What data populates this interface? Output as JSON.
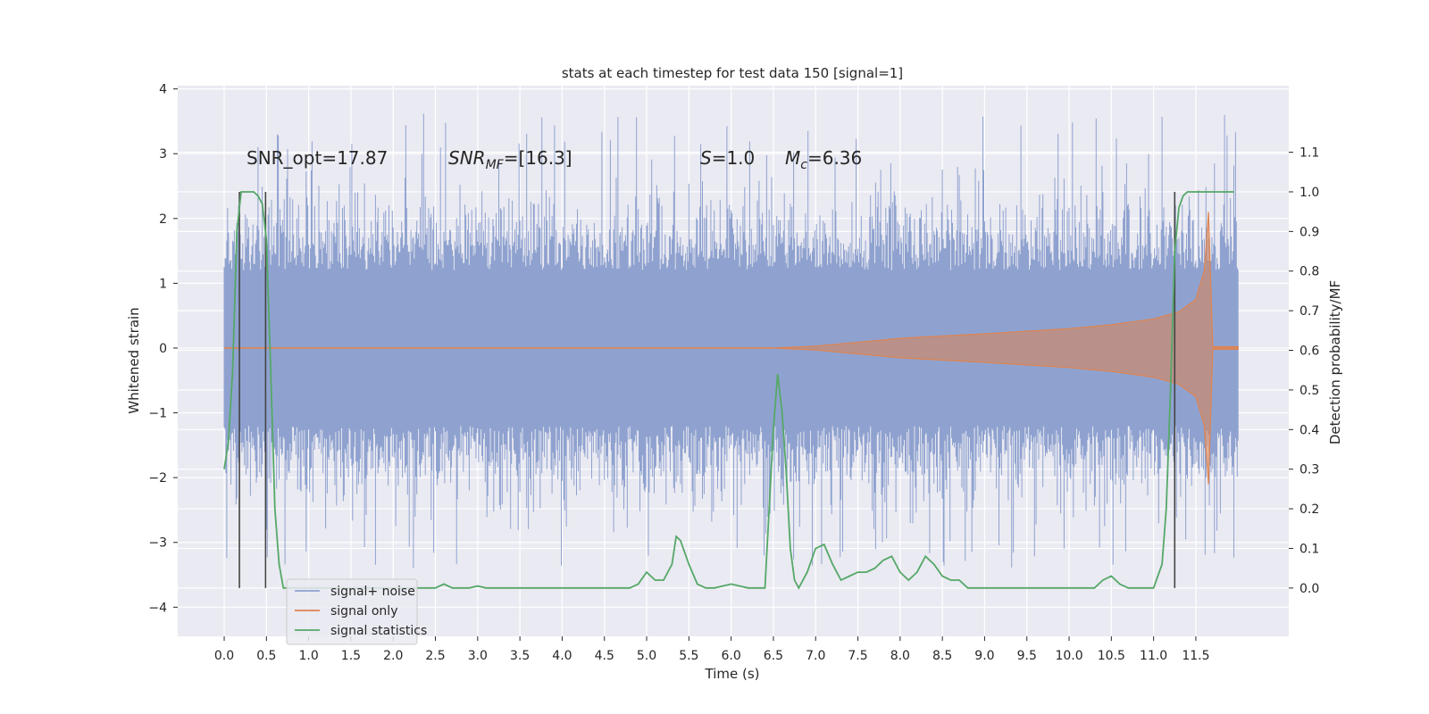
{
  "chart_data": {
    "type": "line",
    "title": "stats at each timestep for test data 150 [signal=1]",
    "xlabel": "Time (s)",
    "ylabel": "Whitened strain",
    "y2label": "Detection probability/MF",
    "xlim": [
      -0.55,
      12.6
    ],
    "ylim": [
      -4.45,
      4.05
    ],
    "y2lim": [
      -0.122,
      1.268
    ],
    "grid": true,
    "legend_position": "lower-left",
    "x_ticks": [
      "0.0",
      "0.5",
      "1.0",
      "1.5",
      "2.0",
      "2.5",
      "3.0",
      "3.5",
      "4.0",
      "4.5",
      "5.0",
      "5.5",
      "6.0",
      "6.5",
      "7.0",
      "7.5",
      "8.0",
      "8.5",
      "9.0",
      "9.5",
      "10.0",
      "10.5",
      "11.0",
      "11.5"
    ],
    "y_ticks": [
      "4",
      "3",
      "2",
      "1",
      "0",
      "−1",
      "−2",
      "−3",
      "−4"
    ],
    "y2_ticks": [
      "1.1",
      "1.0",
      "0.9",
      "0.8",
      "0.7",
      "0.6",
      "0.5",
      "0.4",
      "0.3",
      "0.2",
      "0.1",
      "0.0"
    ],
    "annotations": {
      "snr_opt": "SNR_opt=17.87",
      "snr_mf_sym": "SNR",
      "snr_mf_sub": "MF",
      "snr_mf_val": "=[16.3]",
      "s_sym": "S",
      "s_val": "=1.0",
      "mc_sym": "M",
      "mc_sub": "c",
      "mc_val": "=6.36"
    },
    "vertical_lines_x": [
      0.18,
      0.49,
      11.25
    ],
    "series": [
      {
        "name": "signal+ noise",
        "color": "#8fa2cf",
        "description": "noise band spanning roughly ±1.6 with spikes to ±3.6 over 0.0–12.0 s"
      },
      {
        "name": "signal only",
        "color": "#dd8452",
        "envelope": {
          "x": [
            0.0,
            6.5,
            7.0,
            8.0,
            9.0,
            10.0,
            10.5,
            11.0,
            11.3,
            11.5,
            11.6,
            11.65,
            11.7,
            12.0
          ],
          "y": [
            0.0,
            0.0,
            0.03,
            0.15,
            0.22,
            0.3,
            0.36,
            0.45,
            0.56,
            0.75,
            1.2,
            2.1,
            0.02,
            0.02
          ]
        }
      },
      {
        "name": "signal statistics",
        "color": "#55a868",
        "x": [
          0.0,
          0.05,
          0.1,
          0.15,
          0.2,
          0.25,
          0.3,
          0.35,
          0.4,
          0.45,
          0.5,
          0.55,
          0.6,
          0.65,
          0.7,
          0.75,
          0.8,
          1.0,
          1.5,
          2.0,
          2.5,
          2.6,
          2.7,
          2.8,
          2.9,
          3.0,
          3.1,
          3.3,
          3.5,
          4.0,
          4.5,
          4.8,
          4.9,
          5.0,
          5.1,
          5.2,
          5.3,
          5.35,
          5.4,
          5.5,
          5.6,
          5.7,
          5.8,
          5.9,
          6.0,
          6.2,
          6.4,
          6.45,
          6.5,
          6.55,
          6.6,
          6.65,
          6.7,
          6.75,
          6.8,
          6.9,
          7.0,
          7.1,
          7.2,
          7.3,
          7.4,
          7.5,
          7.6,
          7.7,
          7.8,
          7.9,
          8.0,
          8.1,
          8.2,
          8.3,
          8.4,
          8.5,
          8.6,
          8.7,
          8.8,
          9.0,
          9.5,
          10.0,
          10.3,
          10.4,
          10.5,
          10.6,
          10.7,
          10.9,
          11.0,
          11.1,
          11.15,
          11.2,
          11.25,
          11.3,
          11.35,
          11.4,
          11.45,
          11.5,
          11.6,
          11.7,
          11.8,
          11.9,
          11.95
        ],
        "y": [
          0.3,
          0.37,
          0.55,
          0.9,
          1.0,
          1.0,
          1.0,
          1.0,
          0.99,
          0.97,
          0.88,
          0.55,
          0.2,
          0.06,
          0.0,
          0.0,
          0.0,
          0.0,
          0.0,
          0.0,
          0.0,
          0.01,
          0.0,
          0.0,
          0.0,
          0.005,
          0.0,
          0.0,
          0.0,
          0.0,
          0.0,
          0.0,
          0.01,
          0.04,
          0.02,
          0.02,
          0.06,
          0.13,
          0.12,
          0.06,
          0.01,
          0.0,
          0.0,
          0.005,
          0.01,
          0.0,
          0.0,
          0.2,
          0.4,
          0.54,
          0.45,
          0.3,
          0.1,
          0.02,
          0.0,
          0.04,
          0.1,
          0.11,
          0.06,
          0.02,
          0.03,
          0.04,
          0.04,
          0.05,
          0.07,
          0.08,
          0.04,
          0.02,
          0.04,
          0.08,
          0.06,
          0.03,
          0.02,
          0.02,
          0.0,
          0.0,
          0.0,
          0.0,
          0.0,
          0.02,
          0.03,
          0.01,
          0.0,
          0.0,
          0.0,
          0.06,
          0.2,
          0.5,
          0.85,
          0.96,
          0.99,
          1.0,
          1.0,
          1.0,
          1.0,
          1.0,
          1.0,
          1.0,
          1.0
        ]
      }
    ]
  }
}
